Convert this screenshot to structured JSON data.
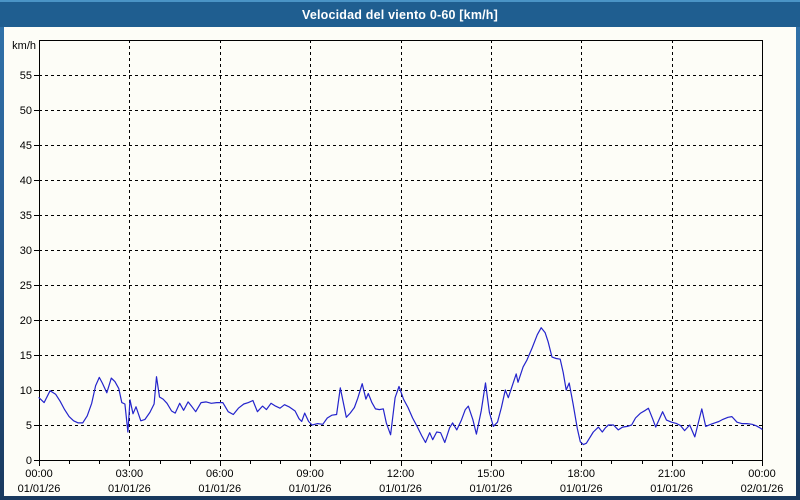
{
  "window": {
    "title": "Velocidad del viento 0-60 [km/h]"
  },
  "colors": {
    "titlebar": "#1f5e90",
    "titlebar_highlight": "#4a94c6",
    "frame_top": "#3174ab",
    "frame_bottom": "#19395e",
    "content_bg": "#fdfdf7",
    "axis": "#000000",
    "line": "#2424cc"
  },
  "chart_data": {
    "type": "line",
    "title": "Velocidad del viento 0-60 [km/h]",
    "ylabel": "km/h",
    "ylim": [
      0,
      60
    ],
    "y_ticks": [
      0,
      5,
      10,
      15,
      20,
      25,
      30,
      35,
      40,
      45,
      50,
      55
    ],
    "xlim_hours": [
      0,
      24
    ],
    "x_minor_step_hours": 1,
    "grid": "dashed",
    "legend": "none",
    "x_major_ticks": [
      {
        "hour": 0,
        "time": "00:00",
        "date": "01/01/26"
      },
      {
        "hour": 3,
        "time": "03:00",
        "date": "01/01/26"
      },
      {
        "hour": 6,
        "time": "06:00",
        "date": "01/01/26"
      },
      {
        "hour": 9,
        "time": "09:00",
        "date": "01/01/26"
      },
      {
        "hour": 12,
        "time": "12:00",
        "date": "01/01/26"
      },
      {
        "hour": 15,
        "time": "15:00",
        "date": "01/01/26"
      },
      {
        "hour": 18,
        "time": "18:00",
        "date": "01/01/26"
      },
      {
        "hour": 21,
        "time": "21:00",
        "date": "01/01/26"
      },
      {
        "hour": 24,
        "time": "00:00",
        "date": "02/01/26"
      }
    ],
    "series": [
      {
        "name": "Velocidad del viento",
        "color": "#2424cc",
        "points": [
          [
            0.0,
            8.9
          ],
          [
            0.17,
            8.2
          ],
          [
            0.37,
            9.9
          ],
          [
            0.55,
            9.4
          ],
          [
            0.7,
            8.4
          ],
          [
            0.85,
            7.2
          ],
          [
            1.0,
            6.2
          ],
          [
            1.15,
            5.6
          ],
          [
            1.3,
            5.3
          ],
          [
            1.45,
            5.3
          ],
          [
            1.6,
            6.3
          ],
          [
            1.75,
            8.1
          ],
          [
            1.88,
            10.6
          ],
          [
            2.0,
            11.8
          ],
          [
            2.1,
            11.0
          ],
          [
            2.25,
            9.6
          ],
          [
            2.4,
            11.7
          ],
          [
            2.52,
            11.2
          ],
          [
            2.65,
            10.2
          ],
          [
            2.75,
            8.2
          ],
          [
            2.85,
            8.0
          ],
          [
            2.95,
            4.0
          ],
          [
            3.02,
            8.6
          ],
          [
            3.12,
            6.6
          ],
          [
            3.22,
            7.6
          ],
          [
            3.38,
            5.6
          ],
          [
            3.52,
            5.8
          ],
          [
            3.68,
            6.8
          ],
          [
            3.82,
            8.0
          ],
          [
            3.9,
            11.9
          ],
          [
            4.0,
            9.0
          ],
          [
            4.12,
            8.7
          ],
          [
            4.25,
            8.1
          ],
          [
            4.4,
            7.0
          ],
          [
            4.52,
            6.7
          ],
          [
            4.67,
            8.1
          ],
          [
            4.8,
            7.1
          ],
          [
            4.95,
            8.3
          ],
          [
            5.08,
            7.6
          ],
          [
            5.2,
            6.9
          ],
          [
            5.38,
            8.2
          ],
          [
            5.55,
            8.3
          ],
          [
            5.72,
            8.1
          ],
          [
            5.9,
            8.2
          ],
          [
            6.1,
            8.2
          ],
          [
            6.28,
            6.9
          ],
          [
            6.45,
            6.5
          ],
          [
            6.62,
            7.4
          ],
          [
            6.8,
            8.0
          ],
          [
            6.95,
            8.2
          ],
          [
            7.1,
            8.5
          ],
          [
            7.25,
            6.9
          ],
          [
            7.42,
            7.7
          ],
          [
            7.55,
            7.2
          ],
          [
            7.7,
            8.1
          ],
          [
            7.85,
            7.7
          ],
          [
            8.0,
            7.4
          ],
          [
            8.15,
            7.9
          ],
          [
            8.3,
            7.6
          ],
          [
            8.5,
            7.0
          ],
          [
            8.63,
            5.9
          ],
          [
            8.72,
            5.5
          ],
          [
            8.82,
            6.7
          ],
          [
            8.95,
            5.5
          ],
          [
            9.07,
            5.0
          ],
          [
            9.25,
            5.2
          ],
          [
            9.42,
            5.1
          ],
          [
            9.57,
            6.0
          ],
          [
            9.72,
            6.4
          ],
          [
            9.88,
            6.5
          ],
          [
            10.0,
            10.3
          ],
          [
            10.12,
            7.8
          ],
          [
            10.2,
            6.1
          ],
          [
            10.33,
            6.7
          ],
          [
            10.47,
            7.5
          ],
          [
            10.58,
            8.8
          ],
          [
            10.73,
            10.9
          ],
          [
            10.85,
            8.7
          ],
          [
            10.93,
            9.5
          ],
          [
            11.05,
            8.2
          ],
          [
            11.17,
            7.3
          ],
          [
            11.3,
            7.2
          ],
          [
            11.43,
            7.3
          ],
          [
            11.53,
            5.3
          ],
          [
            11.67,
            3.6
          ],
          [
            11.82,
            8.9
          ],
          [
            11.95,
            10.5
          ],
          [
            12.1,
            8.7
          ],
          [
            12.25,
            7.5
          ],
          [
            12.4,
            6.0
          ],
          [
            12.55,
            4.8
          ],
          [
            12.7,
            3.5
          ],
          [
            12.83,
            2.5
          ],
          [
            12.97,
            3.9
          ],
          [
            13.07,
            2.9
          ],
          [
            13.2,
            4.0
          ],
          [
            13.33,
            3.9
          ],
          [
            13.47,
            2.5
          ],
          [
            13.63,
            4.6
          ],
          [
            13.73,
            5.3
          ],
          [
            13.87,
            4.3
          ],
          [
            14.02,
            5.7
          ],
          [
            14.15,
            7.2
          ],
          [
            14.25,
            7.7
          ],
          [
            14.4,
            5.8
          ],
          [
            14.52,
            3.7
          ],
          [
            14.68,
            7.0
          ],
          [
            14.82,
            11.0
          ],
          [
            14.95,
            6.8
          ],
          [
            15.08,
            4.8
          ],
          [
            15.22,
            5.4
          ],
          [
            15.35,
            7.5
          ],
          [
            15.48,
            10.0
          ],
          [
            15.58,
            8.9
          ],
          [
            15.84,
            12.3
          ],
          [
            15.9,
            11.1
          ],
          [
            16.07,
            13.3
          ],
          [
            16.2,
            14.3
          ],
          [
            16.37,
            16.0
          ],
          [
            16.54,
            17.9
          ],
          [
            16.67,
            18.9
          ],
          [
            16.8,
            18.2
          ],
          [
            16.9,
            16.9
          ],
          [
            17.03,
            14.7
          ],
          [
            17.17,
            14.5
          ],
          [
            17.3,
            14.4
          ],
          [
            17.4,
            12.5
          ],
          [
            17.5,
            10.0
          ],
          [
            17.6,
            11.0
          ],
          [
            17.73,
            8.0
          ],
          [
            17.87,
            4.5
          ],
          [
            17.97,
            2.6
          ],
          [
            18.07,
            2.2
          ],
          [
            18.17,
            2.4
          ],
          [
            18.27,
            3.1
          ],
          [
            18.4,
            4.0
          ],
          [
            18.57,
            4.7
          ],
          [
            18.7,
            4.0
          ],
          [
            18.8,
            4.6
          ],
          [
            18.9,
            5.0
          ],
          [
            19.07,
            5.0
          ],
          [
            19.23,
            4.3
          ],
          [
            19.37,
            4.7
          ],
          [
            19.53,
            4.8
          ],
          [
            19.67,
            5.0
          ],
          [
            19.8,
            6.0
          ],
          [
            19.97,
            6.7
          ],
          [
            20.13,
            7.1
          ],
          [
            20.23,
            7.4
          ],
          [
            20.37,
            5.9
          ],
          [
            20.47,
            4.7
          ],
          [
            20.7,
            6.9
          ],
          [
            20.83,
            5.7
          ],
          [
            21.0,
            5.4
          ],
          [
            21.17,
            5.2
          ],
          [
            21.3,
            4.9
          ],
          [
            21.43,
            4.2
          ],
          [
            21.6,
            5.0
          ],
          [
            21.77,
            3.3
          ],
          [
            22.0,
            7.3
          ],
          [
            22.13,
            4.8
          ],
          [
            22.3,
            5.1
          ],
          [
            22.43,
            5.3
          ],
          [
            22.57,
            5.5
          ],
          [
            22.7,
            5.8
          ],
          [
            22.87,
            6.1
          ],
          [
            23.0,
            6.2
          ],
          [
            23.17,
            5.4
          ],
          [
            23.33,
            5.2
          ],
          [
            23.5,
            5.2
          ],
          [
            23.67,
            5.1
          ],
          [
            23.8,
            4.9
          ],
          [
            23.93,
            4.6
          ],
          [
            24.0,
            4.4
          ]
        ]
      }
    ]
  }
}
